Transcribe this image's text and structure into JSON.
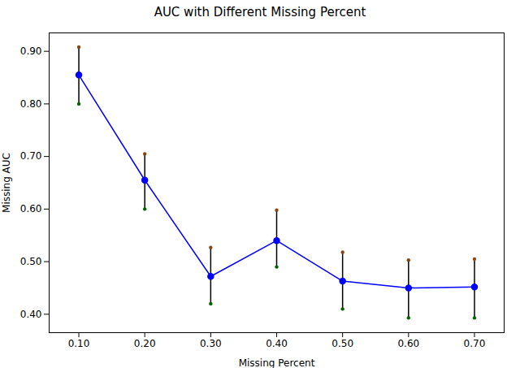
{
  "chart_data": {
    "type": "line",
    "title": "AUC with Different Missing Percent",
    "xlabel": "Missing Percent",
    "ylabel": "Missing AUC",
    "x": [
      0.1,
      0.2,
      0.3,
      0.4,
      0.5,
      0.6,
      0.7
    ],
    "series": [
      {
        "values": [
          0.855,
          0.655,
          0.472,
          0.54,
          0.463,
          0.45,
          0.452
        ],
        "color": "#0000ff",
        "marker": "circle",
        "line_style": "solid"
      }
    ],
    "error_bars": {
      "upper": [
        0.908,
        0.705,
        0.527,
        0.598,
        0.518,
        0.503,
        0.505
      ],
      "lower": [
        0.8,
        0.6,
        0.42,
        0.49,
        0.41,
        0.393,
        0.393
      ],
      "color": "#000000",
      "upper_color": "#8B4513",
      "lower_color": "#006400"
    },
    "xlim": [
      0.055,
      0.745
    ],
    "ylim": [
      0.365,
      0.935
    ],
    "xticks": [
      0.1,
      0.2,
      0.3,
      0.4,
      0.5,
      0.6,
      0.7
    ],
    "yticks": [
      0.4,
      0.5,
      0.6,
      0.7,
      0.8,
      0.9
    ],
    "grid": false
  }
}
